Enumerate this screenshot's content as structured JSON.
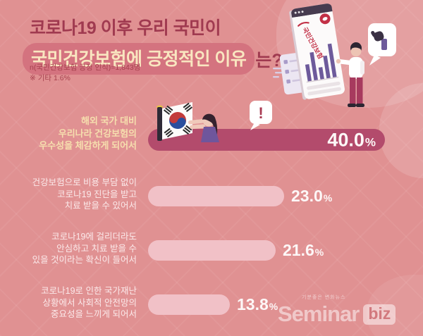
{
  "title": {
    "line1": "코로나19 이후 우리 국민이",
    "line2_highlight": "국민건강보험에 긍정적인 이유",
    "line2_suffix": "는?"
  },
  "subtitle": {
    "line1": "n(국민건강보험 긍정 인식)=1,843명",
    "line2": "※ 기타 1.6%"
  },
  "bars": [
    {
      "label_lines": [
        "해외 국가 대비",
        "우리나라 건강보험의",
        "우수성을 체감하게 되어서"
      ],
      "value": "40.0",
      "unit": "%"
    },
    {
      "label_lines": [
        "건강보험으로 비용 부담 없이",
        "코로나19 진단을 받고",
        "치료 받을 수 있어서"
      ],
      "value": "23.0",
      "unit": "%"
    },
    {
      "label_lines": [
        "코로나19에 걸리더라도",
        "안심하고 치료 받을 수",
        "있을 것이라는 확신이 들어서"
      ],
      "value": "21.6",
      "unit": "%"
    },
    {
      "label_lines": [
        "코로나19로 인한 국가재난",
        "상황에서 사회적 안전망의",
        "중요성을 느끼게 되어서"
      ],
      "value": "13.8",
      "unit": "%"
    }
  ],
  "chart_data": {
    "type": "bar",
    "orientation": "horizontal",
    "title": "코로나19 이후 우리 국민이 국민건강보험에 긍정적인 이유는?",
    "sample_note": "n(국민건강보험 긍정 인식)=1,843명",
    "other_note": "※ 기타 1.6%",
    "categories": [
      "해외 국가 대비 우리나라 건강보험의 우수성을 체감하게 되어서",
      "건강보험으로 비용 부담 없이 코로나19 진단을 받고 치료 받을 수 있어서",
      "코로나19에 걸리더라도 안심하고 치료 받을 수 있을 것이라는 확신이 들어서",
      "코로나19로 인한 국가재난 상황에서 사회적 안전망의 중요성을 느끼게 되어서"
    ],
    "values": [
      40.0,
      23.0,
      21.6,
      13.8
    ],
    "unit": "%",
    "xlim": [
      0,
      45
    ],
    "highlight_index": 0
  },
  "illustration": {
    "report_title": "국민건강보험",
    "exclamation": "!",
    "korean_flag": "태극기",
    "thumbs_up": "좋아요"
  },
  "watermark": {
    "tagline": "기분좋은 변화뉴스",
    "brand": "Seminar",
    "badge": "biz"
  },
  "colors": {
    "background": "#e09192",
    "title_red": "#a03a50",
    "pill_background": "#d4737f",
    "cream_text": "#f9e6c0",
    "bar_dark": "#b34b6c",
    "bar_light": "#f1c1c7",
    "value_text": "#fdf7f7",
    "illustration_purple": "#6d5a9b",
    "illustration_red": "#c23046"
  }
}
